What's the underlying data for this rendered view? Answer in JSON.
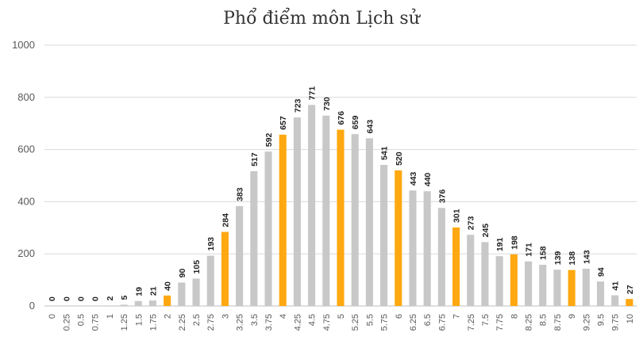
{
  "chart_data": {
    "type": "bar",
    "title": "Phổ điểm môn Lịch sử",
    "xlabel": "",
    "ylabel": "",
    "ylim": [
      0,
      1000
    ],
    "yticks": [
      0,
      200,
      400,
      600,
      800,
      1000
    ],
    "grid": true,
    "legend": "none",
    "categories": [
      "0",
      "0.25",
      "0.5",
      "0.75",
      "1",
      "1.25",
      "1.5",
      "1.75",
      "2",
      "2.25",
      "2.5",
      "2.75",
      "3",
      "3.25",
      "3.5",
      "3.75",
      "4",
      "4.25",
      "4.5",
      "4.75",
      "5",
      "5.25",
      "5.5",
      "5.75",
      "6",
      "6.25",
      "6.5",
      "6.75",
      "7",
      "7.25",
      "7.5",
      "7.75",
      "8",
      "8.25",
      "8.5",
      "8.75",
      "9",
      "9.25",
      "9.5",
      "9.75",
      "10"
    ],
    "values": [
      0,
      0,
      0,
      0,
      2,
      5,
      19,
      21,
      40,
      90,
      105,
      193,
      284,
      383,
      517,
      592,
      657,
      723,
      771,
      730,
      676,
      659,
      643,
      541,
      520,
      443,
      440,
      376,
      301,
      273,
      245,
      191,
      198,
      171,
      158,
      139,
      138,
      143,
      94,
      41,
      27
    ],
    "colors": {
      "default": "#c8c8c8",
      "highlight": "#ffa811"
    },
    "highlight_categories": [
      "2",
      "3",
      "4",
      "5",
      "6",
      "7",
      "8",
      "9",
      "10"
    ]
  }
}
